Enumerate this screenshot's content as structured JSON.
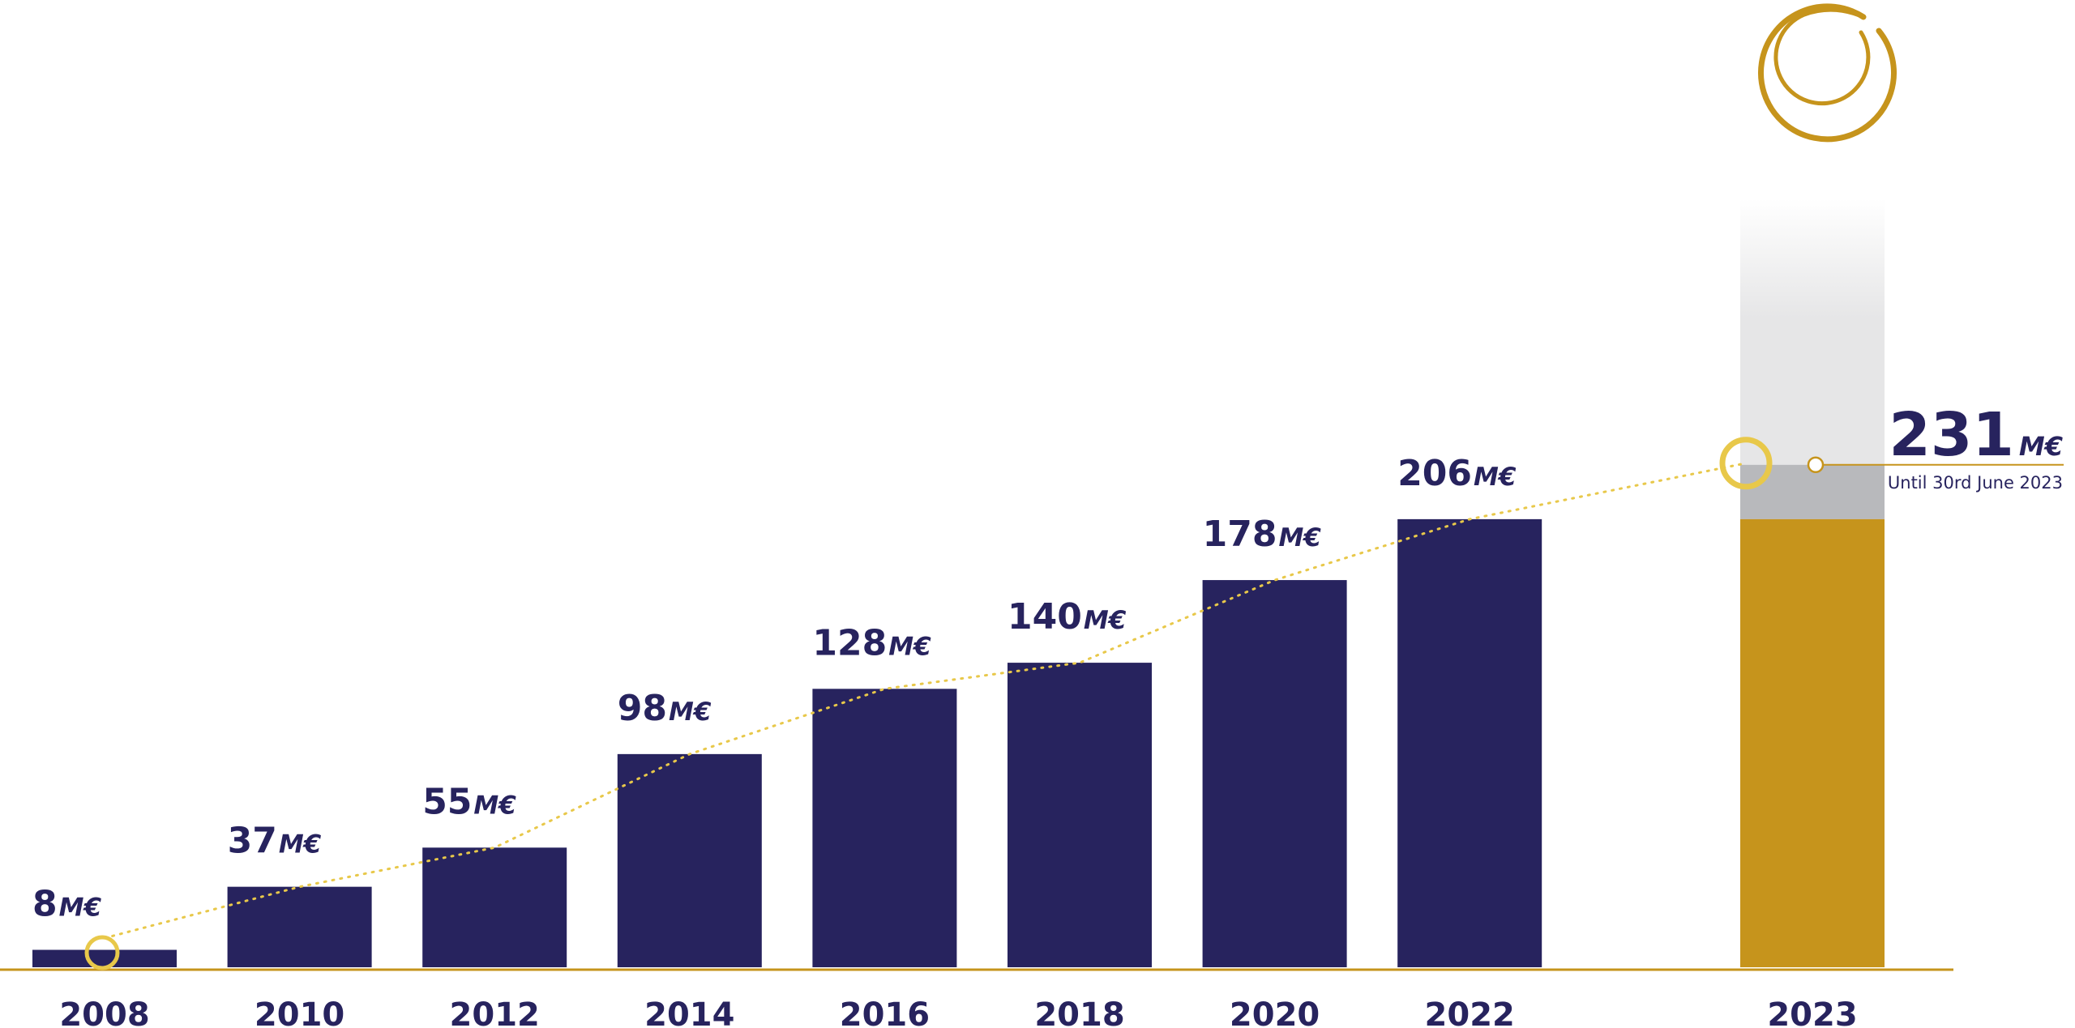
{
  "chart_data": {
    "type": "bar",
    "categories": [
      "2008",
      "2010",
      "2012",
      "2014",
      "2016",
      "2018",
      "2020",
      "2022"
    ],
    "values": [
      8,
      37,
      55,
      98,
      128,
      140,
      178,
      206
    ],
    "value_unit": "M€",
    "highlight": {
      "category": "2023",
      "value": 231,
      "value_label": "231",
      "unit": "M€",
      "note": "Until 30rd June 2023",
      "base_value": 206
    },
    "colors": {
      "bar": "#27235e",
      "highlight_bar": "#c6941c",
      "highlight_increment": "#b8b9bc",
      "axis": "#c6941c",
      "trend_line": "#e8c84a",
      "text": "#27235e"
    },
    "legend": "none",
    "grid": false,
    "trend_line": true,
    "logo_icon": "gold-swirl-logo-icon"
  }
}
